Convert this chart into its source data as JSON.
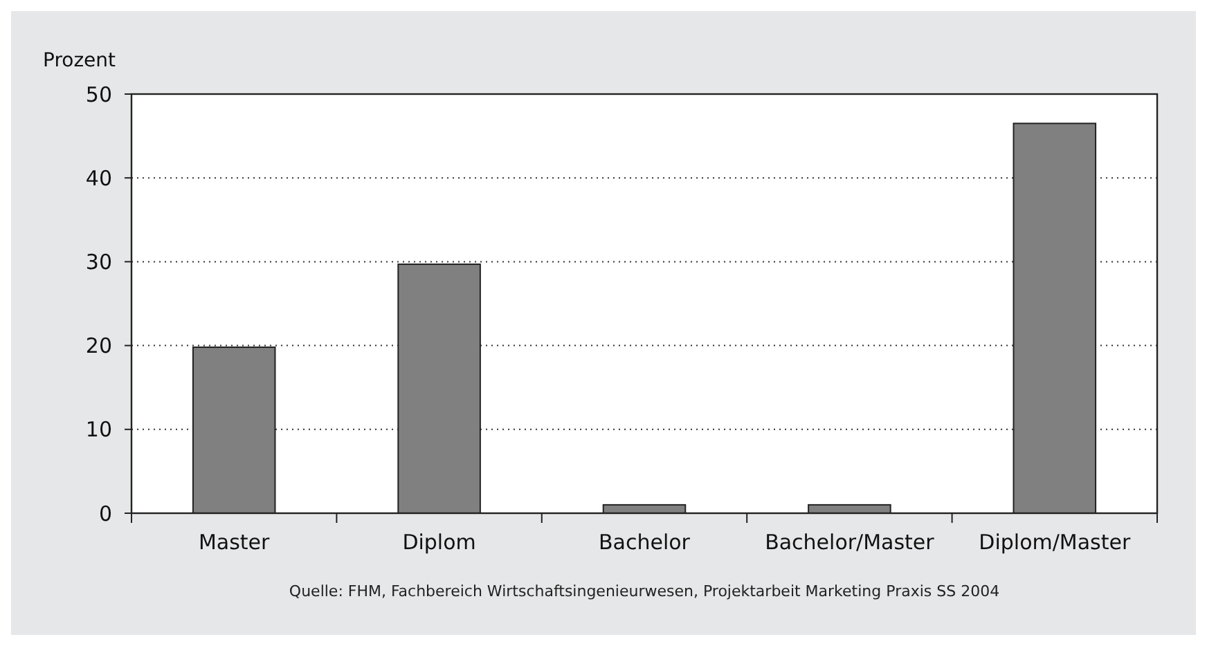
{
  "chart_data": {
    "type": "bar",
    "ylabel": "Prozent",
    "categories": [
      "Master",
      "Diplom",
      "Bachelor",
      "Bachelor/Master",
      "Diplom/Master"
    ],
    "values": [
      19.8,
      29.7,
      1,
      1,
      46.5
    ],
    "color": "#808080",
    "ylim": [
      0,
      50
    ],
    "yticks": [
      0,
      10,
      20,
      30,
      40,
      50
    ],
    "grid": "y",
    "line_style": "dotted",
    "annotations": [
      "Quelle: FHM, Fachbereich Wirtschaftsingenieurwesen, Projektarbeit Marketing Praxis SS 2004"
    ]
  }
}
